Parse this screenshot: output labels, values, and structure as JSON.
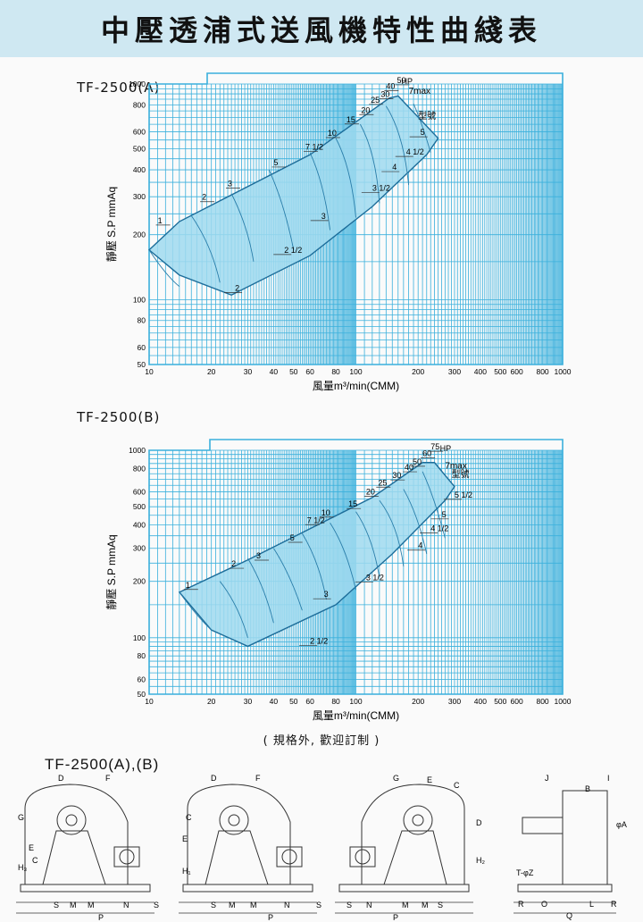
{
  "title": "中壓透浦式送風機特性曲綫表",
  "charts": [
    {
      "label": "TF-2500(A)",
      "ylabel": "靜壓 S.P mmAq",
      "xlabel": "風量m³/min(CMM)",
      "x_ticks": [
        "10",
        "20",
        "30",
        "40",
        "50",
        "60",
        "80",
        "100",
        "200",
        "300",
        "400",
        "500",
        "600",
        "800",
        "1000"
      ],
      "y_ticks": [
        "50",
        "60",
        "80",
        "100",
        "200",
        "300",
        "400",
        "500",
        "600",
        "800",
        "1000"
      ],
      "hp_labels": [
        "1",
        "2",
        "3",
        "5",
        "7 1/2",
        "10",
        "15",
        "20",
        "25",
        "30",
        "40",
        "50"
      ],
      "size_labels": [
        "2",
        "2 1/2",
        "3",
        "3 1/2",
        "4",
        "4 1/2",
        "5"
      ],
      "hp_marker": "HP",
      "max_label": "7max",
      "type_label": "型號"
    },
    {
      "label": "TF-2500(B)",
      "ylabel": "靜壓 S.P mmAq",
      "xlabel": "風量m³/min(CMM)",
      "x_ticks": [
        "10",
        "20",
        "30",
        "40",
        "50",
        "60",
        "80",
        "100",
        "200",
        "300",
        "400",
        "500",
        "600",
        "800",
        "1000"
      ],
      "y_ticks": [
        "50",
        "60",
        "80",
        "100",
        "200",
        "300",
        "400",
        "500",
        "600",
        "800",
        "1000"
      ],
      "hp_labels": [
        "1",
        "2",
        "3",
        "5",
        "7 1/2",
        "10",
        "15",
        "20",
        "25",
        "30",
        "40",
        "50",
        "60",
        "75"
      ],
      "size_labels": [
        "2 1/2",
        "3",
        "3 1/2",
        "4",
        "4 1/2",
        "5",
        "5 1/2"
      ],
      "hp_marker": "HP",
      "max_label": "7max",
      "type_label": "型號"
    }
  ],
  "note": "( 規格外,  歡迎訂制 )",
  "drawings_label": "TF-2500(A),(B)",
  "drawings": [
    {
      "dims": [
        "D",
        "F",
        "G",
        "E",
        "H₃",
        "C",
        "S",
        "M",
        "M",
        "N",
        "S",
        "P"
      ]
    },
    {
      "dims": [
        "D",
        "F",
        "C",
        "E",
        "H₁",
        "S",
        "M",
        "M",
        "N",
        "S",
        "P"
      ]
    },
    {
      "dims": [
        "G",
        "E",
        "C",
        "D",
        "H₂",
        "S",
        "N",
        "M",
        "M",
        "S",
        "P"
      ]
    },
    {
      "dims": [
        "J",
        "I",
        "B",
        "φA",
        "T-φZ",
        "R",
        "O",
        "L",
        "R",
        "Q"
      ]
    }
  ],
  "colors": {
    "grid": "#3ab0dc",
    "fill": "#9fd9ee",
    "banner": "#cfe8f2"
  }
}
